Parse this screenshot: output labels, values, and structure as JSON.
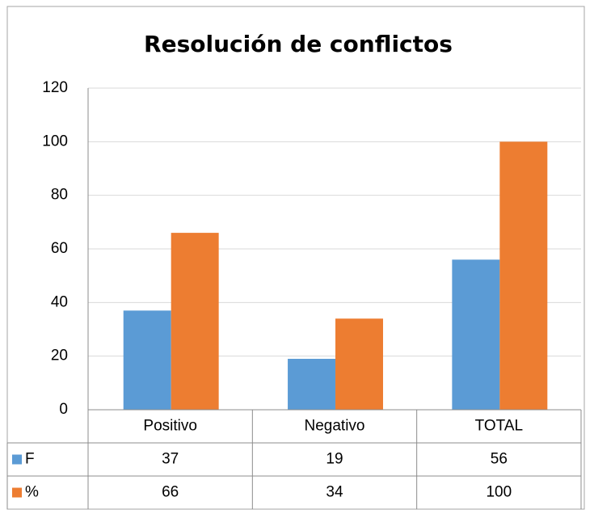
{
  "chart_data": {
    "type": "bar",
    "title": "Resolución de conflictos",
    "categories": [
      "Positivo",
      "Negativo",
      "TOTAL"
    ],
    "series": [
      {
        "name": "F",
        "color": "#5b9bd5",
        "values": [
          37,
          19,
          56
        ]
      },
      {
        "name": "%",
        "color": "#ed7d31",
        "values": [
          66,
          34,
          100
        ]
      }
    ],
    "ylim": [
      0,
      120
    ],
    "yticks": [
      0,
      20,
      40,
      60,
      80,
      100,
      120
    ],
    "grid": true
  }
}
